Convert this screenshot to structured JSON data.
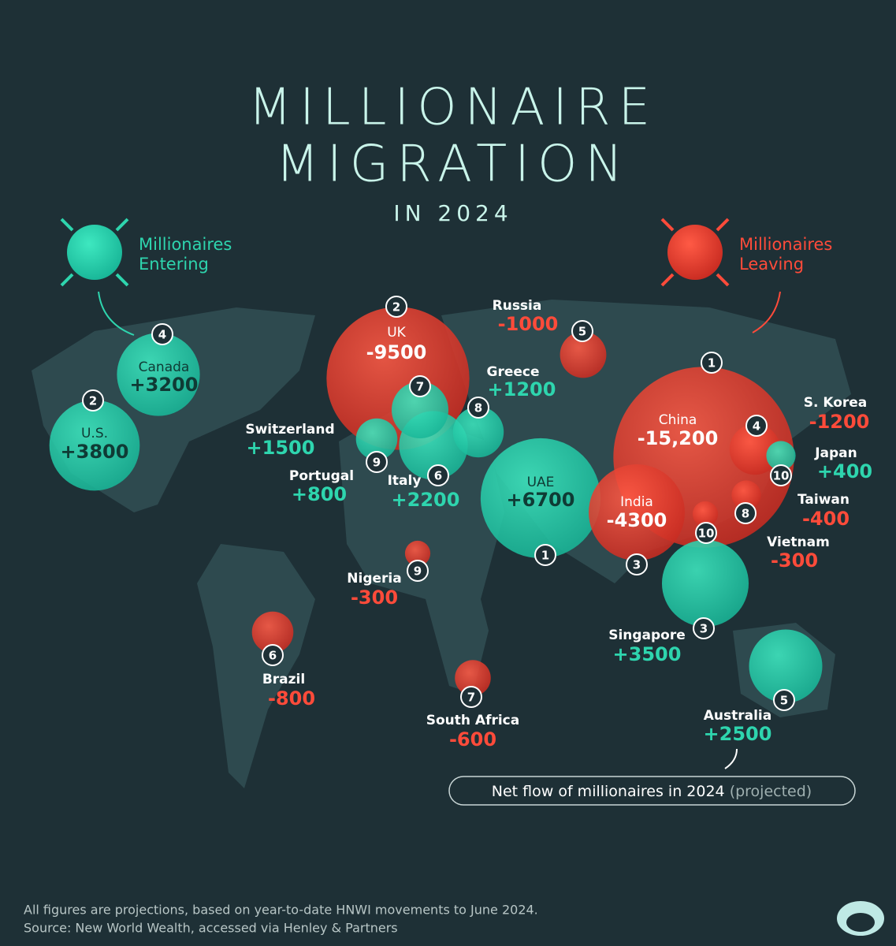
{
  "title": [
    "MILLIONAIRE",
    "MIGRATION"
  ],
  "subtitle": "IN 2024",
  "legend": {
    "entering": [
      "Millionaires",
      "Entering"
    ],
    "leaving": [
      "Millionaires",
      "Leaving"
    ]
  },
  "countries": [
    {
      "name": "UAE",
      "rank": 1,
      "net_flow": 6700,
      "label": "+6700"
    },
    {
      "name": "U.S.",
      "rank": 2,
      "net_flow": 3800,
      "label": "+3800"
    },
    {
      "name": "Singapore",
      "rank": 3,
      "net_flow": 3500,
      "label": "+3500"
    },
    {
      "name": "Canada",
      "rank": 4,
      "net_flow": 3200,
      "label": "+3200"
    },
    {
      "name": "Australia",
      "rank": 5,
      "net_flow": 2500,
      "label": "+2500"
    },
    {
      "name": "Italy",
      "rank": 6,
      "net_flow": 2200,
      "label": "+2200"
    },
    {
      "name": "Switzerland",
      "rank": 7,
      "net_flow": 1500,
      "label": "+1500"
    },
    {
      "name": "Greece",
      "rank": 8,
      "net_flow": 1200,
      "label": "+1200"
    },
    {
      "name": "Portugal",
      "rank": 9,
      "net_flow": 800,
      "label": "+800"
    },
    {
      "name": "Japan",
      "rank": 10,
      "net_flow": 400,
      "label": "+400"
    },
    {
      "name": "China",
      "rank": 1,
      "net_flow": -15200,
      "label": "-15,200"
    },
    {
      "name": "UK",
      "rank": 2,
      "net_flow": -9500,
      "label": "-9500"
    },
    {
      "name": "India",
      "rank": 3,
      "net_flow": -4300,
      "label": "-4300"
    },
    {
      "name": "S. Korea",
      "rank": 4,
      "net_flow": -1200,
      "label": "-1200"
    },
    {
      "name": "Russia",
      "rank": 5,
      "net_flow": -1000,
      "label": "-1000"
    },
    {
      "name": "Brazil",
      "rank": 6,
      "net_flow": -800,
      "label": "-800"
    },
    {
      "name": "South Africa",
      "rank": 7,
      "net_flow": -600,
      "label": "-600"
    },
    {
      "name": "Taiwan",
      "rank": 8,
      "net_flow": -400,
      "label": "-400"
    },
    {
      "name": "Nigeria",
      "rank": 9,
      "net_flow": -300,
      "label": "-300"
    },
    {
      "name": "Vietnam",
      "rank": 10,
      "net_flow": -300,
      "label": "-300"
    }
  ],
  "note": {
    "text": "Net flow of millionaires in 2024",
    "qualifier": "(projected)"
  },
  "footer": [
    "All figures are projections, based on year-to-date HNWI movements to June 2024.",
    "Source: New World Wealth, accessed via Henley & Partners"
  ]
}
